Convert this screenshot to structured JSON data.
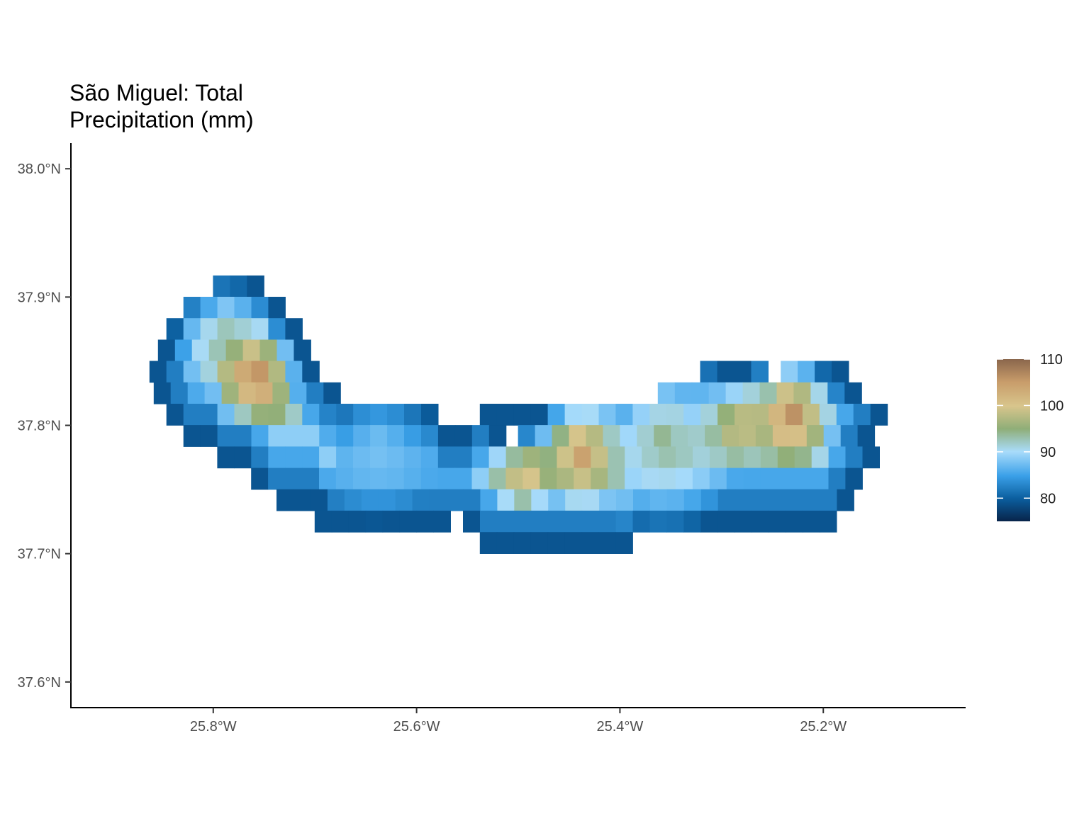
{
  "title": "São Miguel: Total\nPrecipitation (mm)",
  "chart_data": {
    "type": "heatmap",
    "title": "São Miguel: Total\nPrecipitation (mm)",
    "xlabel": "",
    "ylabel": "",
    "x_ticks": [
      {
        "value": -25.8,
        "label": "25.8°W"
      },
      {
        "value": -25.6,
        "label": "25.6°W"
      },
      {
        "value": -25.4,
        "label": "25.4°W"
      },
      {
        "value": -25.2,
        "label": "25.2°W"
      }
    ],
    "y_ticks": [
      {
        "value": 38.0,
        "label": "38.0°N"
      },
      {
        "value": 37.9,
        "label": "37.9°N"
      },
      {
        "value": 37.8,
        "label": "37.8°N"
      },
      {
        "value": 37.7,
        "label": "37.7°N"
      },
      {
        "value": 37.6,
        "label": "37.6°N"
      }
    ],
    "xlim": [
      -25.94,
      -25.06
    ],
    "ylim": [
      37.58,
      38.02
    ],
    "grid": false,
    "cell_size_deg": 0.0167,
    "colorbar": {
      "min": 75,
      "max": 110,
      "ticks": [
        80,
        90,
        100,
        110
      ],
      "placement": "right",
      "colors": [
        "#08244a",
        "#0b5e9e",
        "#3aa0e8",
        "#a9dcfb",
        "#8fae78",
        "#d8c58c",
        "#dcb07a",
        "#8a664c"
      ]
    },
    "island_rows": [
      {
        "lat": 37.9083,
        "segments": [
          [
            -25.7917,
            -25.7583,
            76
          ]
        ]
      },
      {
        "lat": 37.8917,
        "segments": [
          [
            -25.8208,
            -25.7333,
            84
          ]
        ]
      },
      {
        "lat": 37.875,
        "segments": [
          [
            -25.8375,
            -25.7083,
            90
          ]
        ]
      },
      {
        "lat": 37.8583,
        "segments": [
          [
            -25.8458,
            -25.6958,
            92
          ]
        ]
      },
      {
        "lat": 37.8417,
        "segments": [
          [
            -25.8542,
            -25.6875,
            94
          ],
          [
            -25.3125,
            -25.3125,
            75
          ],
          [
            -25.3125,
            -25.25,
            77
          ],
          [
            -25.2333,
            -25.1792,
            76
          ]
        ]
      },
      {
        "lat": 37.825,
        "segments": [
          [
            -25.85,
            -25.6667,
            95
          ],
          [
            -25.3542,
            -25.1583,
            83
          ]
        ]
      },
      {
        "lat": 37.8083,
        "segments": [
          [
            -25.8375,
            -25.5833,
            92
          ],
          [
            -25.5292,
            -25.1417,
            85
          ]
        ]
      },
      {
        "lat": 37.7917,
        "segments": [
          [
            -25.8208,
            -25.5042,
            89
          ],
          [
            -25.4917,
            -25.1458,
            88
          ]
        ]
      },
      {
        "lat": 37.775,
        "segments": [
          [
            -25.7875,
            -25.1458,
            91
          ]
        ]
      },
      {
        "lat": 37.7583,
        "segments": [
          [
            -25.7542,
            -25.1542,
            92
          ]
        ]
      },
      {
        "lat": 37.7417,
        "segments": [
          [
            -25.7292,
            -25.1708,
            88
          ]
        ]
      },
      {
        "lat": 37.725,
        "segments": [
          [
            -25.6917,
            -25.5583,
            79
          ],
          [
            -25.5458,
            -25.1917,
            83
          ]
        ]
      },
      {
        "lat": 37.7083,
        "segments": [
          [
            -25.5292,
            -25.3875,
            80
          ]
        ]
      }
    ],
    "hotspots": [
      {
        "lon": -25.7583,
        "lat": 37.8375,
        "value": 108,
        "radius": 0.045
      },
      {
        "lon": -25.7917,
        "lat": 37.8667,
        "value": 94,
        "radius": 0.05
      },
      {
        "lon": -25.4375,
        "lat": 37.7792,
        "value": 106,
        "radius": 0.05
      },
      {
        "lon": -25.4958,
        "lat": 37.7625,
        "value": 104,
        "radius": 0.035
      },
      {
        "lon": -25.2333,
        "lat": 37.8083,
        "value": 108,
        "radius": 0.05
      },
      {
        "lon": -25.2833,
        "lat": 37.8,
        "value": 101,
        "radius": 0.04
      },
      {
        "lon": -25.3583,
        "lat": 37.7917,
        "value": 94,
        "radius": 0.08
      },
      {
        "lon": -25.6375,
        "lat": 37.7833,
        "value": 88,
        "radius": 0.06
      }
    ]
  }
}
